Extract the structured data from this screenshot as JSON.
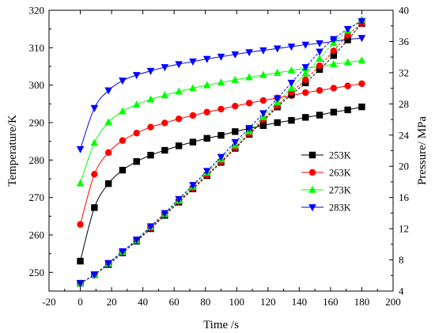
{
  "chart_data": {
    "type": "line",
    "xlabel": "Time /s",
    "ylabel_left": "Temperature/K",
    "ylabel_right": "Pressure/ MPa",
    "xlim": [
      -20,
      200
    ],
    "ylim_left": [
      245,
      320
    ],
    "ylim_right": [
      4,
      40
    ],
    "x_ticks": [
      -20,
      0,
      20,
      40,
      60,
      80,
      100,
      120,
      140,
      160,
      180,
      200
    ],
    "y_left_ticks": [
      250,
      260,
      270,
      280,
      290,
      300,
      310,
      320
    ],
    "y_right_ticks": [
      4,
      8,
      12,
      16,
      20,
      24,
      28,
      32,
      36,
      40
    ],
    "legend_position": "right-middle",
    "x": [
      0,
      9,
      18,
      27,
      36,
      45,
      54,
      63,
      72,
      81,
      90,
      99,
      108,
      117,
      126,
      135,
      144,
      153,
      162,
      171,
      180
    ],
    "series": [
      {
        "name": "253K",
        "axis": "left",
        "color": "#000000",
        "marker": "square",
        "values": [
          253.0,
          267.3,
          273.7,
          277.3,
          279.6,
          281.3,
          282.6,
          283.8,
          284.8,
          285.8,
          286.6,
          287.6,
          288.4,
          289.2,
          290.0,
          290.6,
          291.4,
          292.0,
          292.8,
          293.4,
          294.2
        ]
      },
      {
        "name": "263K",
        "axis": "left",
        "color": "#ff0000",
        "marker": "circle",
        "values": [
          262.8,
          276.2,
          282.0,
          285.2,
          287.2,
          288.8,
          289.9,
          291.0,
          291.9,
          292.8,
          293.6,
          294.4,
          295.2,
          295.9,
          296.6,
          297.2,
          298.0,
          298.6,
          299.2,
          299.8,
          300.4
        ]
      },
      {
        "name": "273K",
        "axis": "left",
        "color": "#00ff00",
        "marker": "triangle-up",
        "values": [
          273.8,
          284.6,
          290.1,
          293.0,
          294.8,
          296.2,
          297.3,
          298.3,
          299.2,
          300.0,
          300.7,
          301.4,
          302.1,
          302.7,
          303.3,
          303.9,
          304.5,
          305.0,
          305.6,
          306.1,
          306.6
        ]
      },
      {
        "name": "283K",
        "axis": "left",
        "color": "#0000ff",
        "marker": "triangle-down",
        "values": [
          282.9,
          293.9,
          298.6,
          301.2,
          302.7,
          303.8,
          304.8,
          305.6,
          306.3,
          307.0,
          307.6,
          308.2,
          308.8,
          309.3,
          309.8,
          310.3,
          310.8,
          311.2,
          311.7,
          312.2,
          312.6
        ]
      },
      {
        "name": "253K",
        "axis": "right",
        "color": "#000000",
        "marker": "square",
        "values": [
          5.0,
          6.1,
          7.4,
          8.9,
          10.4,
          12.0,
          13.7,
          15.4,
          17.1,
          18.8,
          20.5,
          22.3,
          24.1,
          25.8,
          27.6,
          29.2,
          30.7,
          32.4,
          34.2,
          36.2,
          38.3
        ]
      },
      {
        "name": "263K",
        "axis": "right",
        "color": "#ff0000",
        "marker": "circle",
        "values": [
          5.0,
          6.1,
          7.5,
          9.0,
          10.5,
          12.1,
          13.8,
          15.5,
          17.2,
          18.9,
          20.6,
          22.4,
          24.2,
          26.0,
          27.8,
          29.5,
          31.1,
          32.9,
          34.8,
          36.8,
          38.3
        ]
      },
      {
        "name": "273K",
        "axis": "right",
        "color": "#00ff00",
        "marker": "triangle-up",
        "values": [
          5.0,
          6.1,
          7.5,
          9.0,
          10.5,
          12.2,
          13.9,
          15.6,
          17.4,
          19.2,
          20.9,
          22.7,
          24.5,
          26.3,
          28.2,
          30.0,
          31.9,
          33.8,
          35.8,
          37.4,
          38.8
        ]
      },
      {
        "name": "283K",
        "axis": "right",
        "color": "#0000ff",
        "marker": "triangle-down",
        "values": [
          5.0,
          6.1,
          7.6,
          9.1,
          10.6,
          12.3,
          14.0,
          15.8,
          17.6,
          19.4,
          21.2,
          23.1,
          24.9,
          26.8,
          28.7,
          30.7,
          32.7,
          34.7,
          36.3,
          37.6,
          38.6
        ]
      }
    ]
  }
}
